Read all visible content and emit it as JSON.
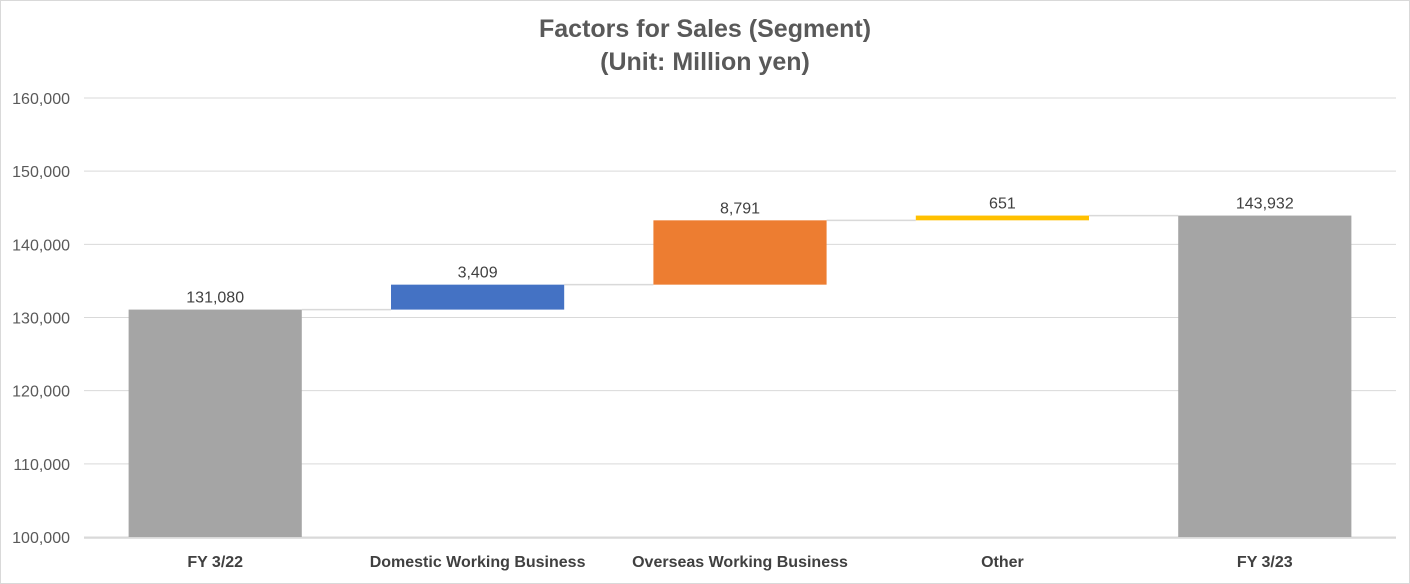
{
  "chart_data": {
    "type": "bar",
    "subtype": "waterfall",
    "title": "Factors for Sales (Segment)",
    "subtitle": "(Unit: Million yen)",
    "xlabel": "",
    "ylabel": "",
    "ylim": [
      100000,
      160000
    ],
    "yticks": [
      100000,
      110000,
      120000,
      130000,
      140000,
      150000,
      160000
    ],
    "ytick_labels": [
      "100,000",
      "110,000",
      "120,000",
      "130,000",
      "140,000",
      "150,000",
      "160,000"
    ],
    "grid": true,
    "legend": "none",
    "categories": [
      "FY 3/22",
      "Domestic Working Business",
      "Overseas Working Business",
      "Other",
      "FY 3/23"
    ],
    "values": [
      131080,
      3409,
      8791,
      651,
      143932
    ],
    "value_labels": [
      "131,080",
      "3,409",
      "8,791",
      "651",
      "143,932"
    ],
    "kinds": [
      "total",
      "increase",
      "increase",
      "increase",
      "total"
    ],
    "colors": [
      "#a5a5a5",
      "#4472c4",
      "#ed7d31",
      "#ffc000",
      "#a5a5a5"
    ]
  }
}
